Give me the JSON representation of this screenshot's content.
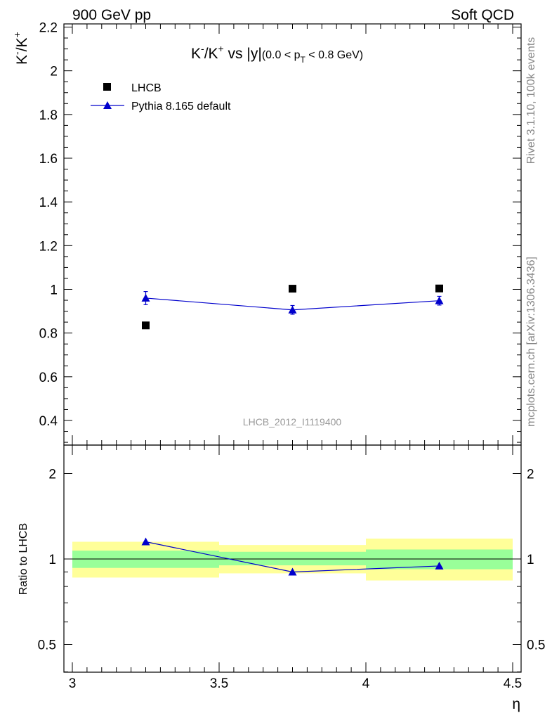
{
  "header": {
    "left": "900 GeV pp",
    "right": "Soft QCD"
  },
  "side": {
    "rivet": "Rivet 3.1.10,  100k events",
    "mcplots": "mcplots.cern.ch [arXiv:1306.3436]"
  },
  "watermark": "LHCB_2012_I1119400",
  "chart_data": [
    {
      "type": "scatter",
      "title": {
        "base": "K",
        "sup1": "-",
        "mid": "/K",
        "sup2": "+",
        "after": " vs |y|",
        "range_pre": "(0.0 < p",
        "range_sub": "T",
        "range_post": " < 0.8 GeV)"
      },
      "ylabel": {
        "a": "K",
        "sup1": "-",
        "b": "/K",
        "sup2": "+"
      },
      "xlim": [
        3.0,
        4.5
      ],
      "ylim": [
        0.3,
        2.2
      ],
      "yticks": [
        0.4,
        0.6,
        0.8,
        1,
        1.2,
        1.4,
        1.6,
        1.8,
        2,
        2.2
      ],
      "legend_position": "top-left",
      "series": [
        {
          "name": "LHCB",
          "marker": "square",
          "color": "#000000",
          "x": [
            3.25,
            3.75,
            4.25
          ],
          "y": [
            0.835,
            1.003,
            1.004
          ]
        },
        {
          "name": "Pythia 8.165 default",
          "marker": "triangle",
          "color": "#0000cc",
          "x": [
            3.25,
            3.75,
            4.25
          ],
          "y": [
            0.96,
            0.906,
            0.948
          ],
          "yerr": [
            0.03,
            0.02,
            0.02
          ]
        }
      ]
    },
    {
      "type": "scatter",
      "ylabel": "Ratio to LHCB",
      "xlabel": "η",
      "xlim": [
        3.0,
        4.5
      ],
      "ylim": [
        0.4,
        2.3
      ],
      "log_y": true,
      "yticks": [
        0.5,
        1,
        2
      ],
      "xticks": [
        3,
        3.5,
        4,
        4.5
      ],
      "bands": [
        {
          "x0": 3.0,
          "x1": 3.5,
          "green": [
            0.93,
            1.07
          ],
          "yellow": [
            0.86,
            1.15
          ]
        },
        {
          "x0": 3.5,
          "x1": 4.0,
          "green": [
            0.95,
            1.06
          ],
          "yellow": [
            0.89,
            1.12
          ]
        },
        {
          "x0": 4.0,
          "x1": 4.5,
          "green": [
            0.92,
            1.08
          ],
          "yellow": [
            0.84,
            1.18
          ]
        }
      ],
      "series": [
        {
          "name": "Pythia 8.165 default",
          "color": "#0000cc",
          "x": [
            3.25,
            3.75,
            4.25
          ],
          "y": [
            1.15,
            0.9,
            0.945
          ],
          "yerr": [
            0.03,
            0.02,
            0.02
          ]
        }
      ],
      "colors": {
        "green": "#99ff99",
        "yellow": "#ffff99"
      }
    }
  ]
}
